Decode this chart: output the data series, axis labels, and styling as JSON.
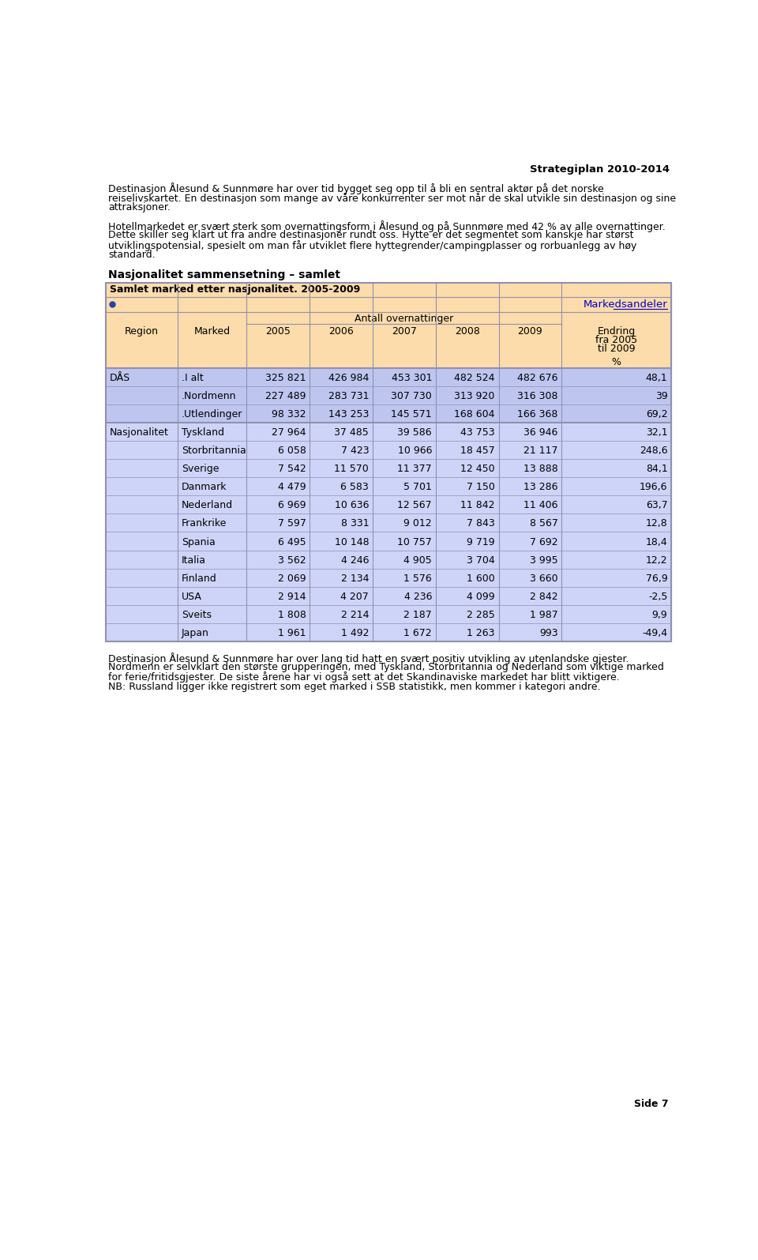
{
  "page_title": "Strategiplan 2010-2014",
  "page_number": "Side 7",
  "para1_lines": [
    "Destinasjon Ålesund & Sunnmøre har over tid bygget seg opp til å bli en sentral aktør på det norske",
    "reiselivskartet. En destinasjon som mange av våre konkurrenter ser mot når de skal utvikle sin destinasjon og sine",
    "attraksjoner."
  ],
  "para2_lines": [
    "Hotellmarkedet er svært sterk som overnattingsform i Ålesund og på Sunnmøre med 42 % av alle overnattinger.",
    "Dette skiller seg klart ut fra andre destinasjoner rundt oss. Hytte er det segmentet som kanskje har størst",
    "utviklingspotensial, spesielt om man får utviklet flere hyttegrender/campingplasser og rorbuanlegg av høy",
    "standard."
  ],
  "section_title": "Nasjonalitet sammensetning – samlet",
  "table_title": "Samlet marked etter nasjonalitet. 2005-2009",
  "markedsandeler_label": "Markedsandeler",
  "antall_header": "Antall overnattinger",
  "rows": [
    [
      "DÅS",
      ".I alt",
      "325 821",
      "426 984",
      "453 301",
      "482 524",
      "482 676",
      "48,1"
    ],
    [
      "",
      ".Nordmenn",
      "227 489",
      "283 731",
      "307 730",
      "313 920",
      "316 308",
      "39"
    ],
    [
      "",
      ".Utlendinger",
      "98 332",
      "143 253",
      "145 571",
      "168 604",
      "166 368",
      "69,2"
    ],
    [
      "Nasjonalitet",
      "Tyskland",
      "27 964",
      "37 485",
      "39 586",
      "43 753",
      "36 946",
      "32,1"
    ],
    [
      "",
      "Storbritannia",
      "6 058",
      "7 423",
      "10 966",
      "18 457",
      "21 117",
      "248,6"
    ],
    [
      "",
      "Sverige",
      "7 542",
      "11 570",
      "11 377",
      "12 450",
      "13 888",
      "84,1"
    ],
    [
      "",
      "Danmark",
      "4 479",
      "6 583",
      "5 701",
      "7 150",
      "13 286",
      "196,6"
    ],
    [
      "",
      "Nederland",
      "6 969",
      "10 636",
      "12 567",
      "11 842",
      "11 406",
      "63,7"
    ],
    [
      "",
      "Frankrike",
      "7 597",
      "8 331",
      "9 012",
      "7 843",
      "8 567",
      "12,8"
    ],
    [
      "",
      "Spania",
      "6 495",
      "10 148",
      "10 757",
      "9 719",
      "7 692",
      "18,4"
    ],
    [
      "",
      "Italia",
      "3 562",
      "4 246",
      "4 905",
      "3 704",
      "3 995",
      "12,2"
    ],
    [
      "",
      "Finland",
      "2 069",
      "2 134",
      "1 576",
      "1 600",
      "3 660",
      "76,9"
    ],
    [
      "",
      "USA",
      "2 914",
      "4 207",
      "4 236",
      "4 099",
      "2 842",
      "-2,5"
    ],
    [
      "",
      "Sveits",
      "1 808",
      "2 214",
      "2 187",
      "2 285",
      "1 987",
      "9,9"
    ],
    [
      "",
      "Japan",
      "1 961",
      "1 492",
      "1 672",
      "1 263",
      "993",
      "-49,4"
    ]
  ],
  "para3_lines": [
    "Destinasjon Ålesund & Sunnmøre har over lang tid hatt en svært positiv utvikling av utenlandske gjester.",
    "Nordmenn er selvklart den største grupperingen, med Tyskland, Storbritannia og Nederland som viktige marked",
    "for ferie/fritidsgjester. De siste årene har vi også sett at det Skandinaviske markedet har blitt viktigere.",
    "NB: Russland ligger ikke registrert som eget marked i SSB statistikk, men kommer i kategori andre."
  ],
  "header_bg": "#fcdcaa",
  "row_bg_das": "#bec6f0",
  "row_bg_nasj": "#ced4f8",
  "table_border_color": "#9090b0",
  "markedsandeler_color": "#0000cc",
  "bullet_color": "#2244aa",
  "text_color": "#000000",
  "page_bg": "#ffffff"
}
